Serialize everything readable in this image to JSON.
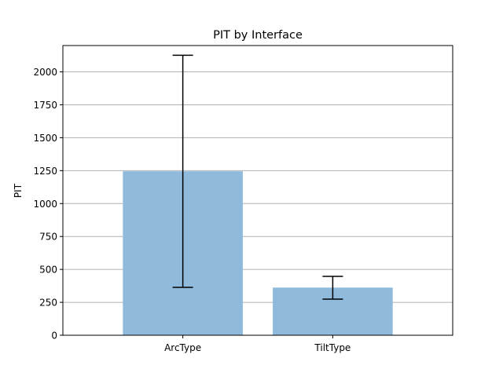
{
  "chart_data": {
    "type": "bar",
    "title": "PIT by Interface",
    "xlabel": "",
    "ylabel": "PIT",
    "categories": [
      "ArcType",
      "TiltType"
    ],
    "values": [
      1245,
      362
    ],
    "error": [
      {
        "low": 364,
        "high": 2126
      },
      {
        "low": 274,
        "high": 447
      }
    ],
    "ylim": [
      0,
      2200
    ],
    "yticks": [
      0,
      250,
      500,
      750,
      1000,
      1250,
      1500,
      1750,
      2000
    ],
    "ytick_labels": [
      "0",
      "250",
      "500",
      "750",
      "1000",
      "1250",
      "1500",
      "1750",
      "2000"
    ],
    "grid": "y",
    "bar_color": "#8fbadb",
    "legend": "none"
  }
}
